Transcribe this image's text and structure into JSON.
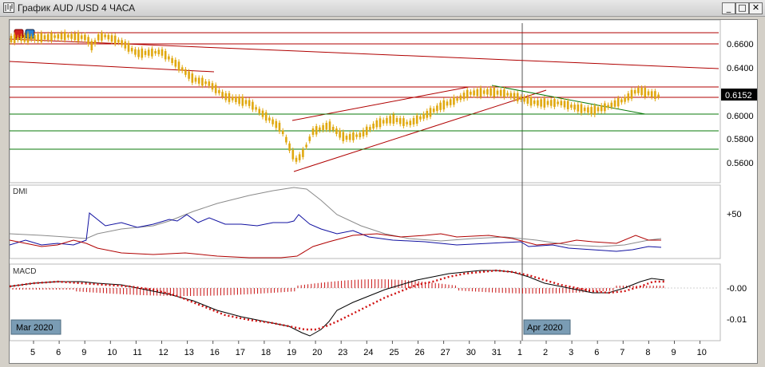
{
  "window": {
    "title": "График AUD /USD  4 ЧАСА",
    "buttons": {
      "minimize": "_",
      "restore": "□",
      "close": "✕"
    }
  },
  "price_panel": {
    "y_ticks": [
      "0.6600",
      "0.6400",
      "0.6152",
      "0.6000",
      "0.5800",
      "0.5600"
    ],
    "current_price": "0.6152",
    "candle_color": "#e0a80f"
  },
  "dmi_panel": {
    "label": "DMI",
    "y_tick": "+50"
  },
  "macd_panel": {
    "label": "MACD",
    "y_ticks": [
      "-0.00",
      "-0.01"
    ],
    "month_labels": [
      "Mar 2020",
      "Apr 2020"
    ]
  },
  "x_axis": {
    "ticks": [
      "5",
      "6",
      "9",
      "10",
      "11",
      "12",
      "13",
      "16",
      "17",
      "18",
      "19",
      "20",
      "23",
      "24",
      "25",
      "26",
      "27",
      "30",
      "31",
      "1",
      "2",
      "3",
      "6",
      "7",
      "8",
      "9",
      "10"
    ]
  },
  "colors": {
    "resistance_lines": "#b00000",
    "support_lines": "#0a7a0a",
    "dmi_plus": "#1010a0",
    "dmi_minus": "#b00000",
    "adx": "#8a8a8a",
    "macd_signal": "#d01010"
  }
}
